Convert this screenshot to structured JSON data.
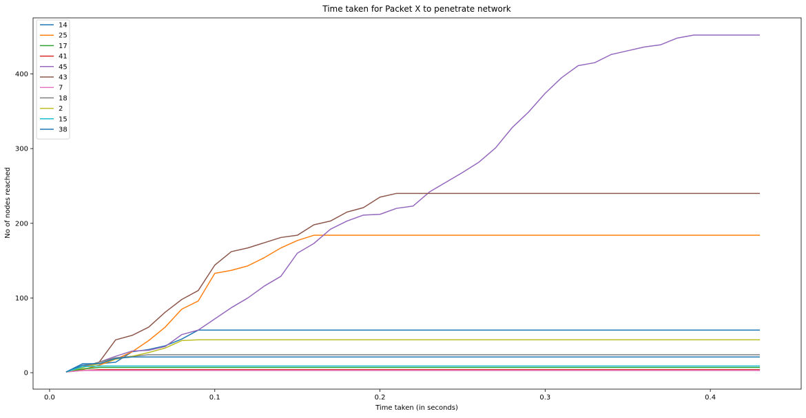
{
  "chart_data": {
    "type": "line",
    "title": "Time taken for Packet X to penetrate network",
    "xlabel": "Time taken (in seconds)",
    "ylabel": "No of nodes reached",
    "xlim": [
      -0.01,
      0.455
    ],
    "ylim": [
      -22,
      475
    ],
    "xticks": [
      0.0,
      0.1,
      0.2,
      0.3,
      0.4
    ],
    "xtick_labels": [
      "0.0",
      "0.1",
      "0.2",
      "0.3",
      "0.4"
    ],
    "yticks": [
      0,
      100,
      200,
      300,
      400
    ],
    "ytick_labels": [
      "0",
      "100",
      "200",
      "300",
      "400"
    ],
    "grid": false,
    "legend_position": "top-left",
    "x": [
      0.01,
      0.02,
      0.03,
      0.04,
      0.05,
      0.06,
      0.07,
      0.08,
      0.09,
      0.1,
      0.11,
      0.12,
      0.13,
      0.14,
      0.15,
      0.16,
      0.17,
      0.18,
      0.19,
      0.2,
      0.21,
      0.22,
      0.23,
      0.24,
      0.25,
      0.26,
      0.27,
      0.28,
      0.29,
      0.3,
      0.31,
      0.32,
      0.33,
      0.34,
      0.35,
      0.36,
      0.37,
      0.38,
      0.39,
      0.4,
      0.41,
      0.42,
      0.43
    ],
    "series": [
      {
        "name": "14",
        "color": "#1f77b4",
        "values": [
          1,
          10,
          12,
          14,
          28,
          31,
          36,
          45,
          57,
          57,
          57,
          57,
          57,
          57,
          57,
          57,
          57,
          57,
          57,
          57,
          57,
          57,
          57,
          57,
          57,
          57,
          57,
          57,
          57,
          57,
          57,
          57,
          57,
          57,
          57,
          57,
          57,
          57,
          57,
          57,
          57,
          57,
          57
        ]
      },
      {
        "name": "25",
        "color": "#ff7f0e",
        "values": [
          1,
          4,
          10,
          18,
          28,
          43,
          61,
          85,
          96,
          133,
          137,
          143,
          154,
          167,
          177,
          184,
          184,
          184,
          184,
          184,
          184,
          184,
          184,
          184,
          184,
          184,
          184,
          184,
          184,
          184,
          184,
          184,
          184,
          184,
          184,
          184,
          184,
          184,
          184,
          184,
          184,
          184,
          184
        ]
      },
      {
        "name": "17",
        "color": "#2ca02c",
        "values": [
          1,
          5,
          7,
          7,
          7,
          7,
          7,
          7,
          7,
          7,
          7,
          7,
          7,
          7,
          7,
          7,
          7,
          7,
          7,
          7,
          7,
          7,
          7,
          7,
          7,
          7,
          7,
          7,
          7,
          7,
          7,
          7,
          7,
          7,
          7,
          7,
          7,
          7,
          7,
          7,
          7,
          7,
          7
        ]
      },
      {
        "name": "41",
        "color": "#d62728",
        "values": [
          1,
          3,
          4,
          4,
          4,
          4,
          4,
          4,
          4,
          4,
          4,
          4,
          4,
          4,
          4,
          4,
          4,
          4,
          4,
          4,
          4,
          4,
          4,
          4,
          4,
          4,
          4,
          4,
          4,
          4,
          4,
          4,
          4,
          4,
          4,
          4,
          4,
          4,
          4,
          4,
          4,
          4,
          4
        ]
      },
      {
        "name": "45",
        "color": "#9467bd",
        "values": [
          1,
          8,
          14,
          22,
          29,
          30,
          35,
          51,
          57,
          72,
          87,
          100,
          116,
          129,
          160,
          173,
          192,
          203,
          211,
          212,
          220,
          223,
          242,
          255,
          268,
          282,
          301,
          328,
          349,
          374,
          395,
          411,
          415,
          426,
          431,
          436,
          439,
          448,
          452,
          452,
          452,
          452,
          452
        ]
      },
      {
        "name": "43",
        "color": "#8c564b",
        "values": [
          1,
          8,
          14,
          44,
          50,
          61,
          81,
          98,
          110,
          144,
          162,
          167,
          174,
          181,
          184,
          198,
          203,
          215,
          221,
          235,
          240,
          240,
          240,
          240,
          240,
          240,
          240,
          240,
          240,
          240,
          240,
          240,
          240,
          240,
          240,
          240,
          240,
          240,
          240,
          240,
          240,
          240,
          240
        ]
      },
      {
        "name": "7",
        "color": "#e377c2",
        "values": [
          1,
          3,
          3,
          3,
          3,
          3,
          3,
          3,
          3,
          3,
          3,
          3,
          3,
          3,
          3,
          3,
          3,
          3,
          3,
          3,
          3,
          3,
          3,
          3,
          3,
          3,
          3,
          3,
          3,
          3,
          3,
          3,
          3,
          3,
          3,
          3,
          3,
          3,
          3,
          3,
          3,
          3,
          3
        ]
      },
      {
        "name": "18",
        "color": "#7f7f7f",
        "values": [
          1,
          8,
          14,
          20,
          22,
          24,
          24,
          24,
          24,
          24,
          24,
          24,
          24,
          24,
          24,
          24,
          24,
          24,
          24,
          24,
          24,
          24,
          24,
          24,
          24,
          24,
          24,
          24,
          24,
          24,
          24,
          24,
          24,
          24,
          24,
          24,
          24,
          24,
          24,
          24,
          24,
          24,
          24
        ]
      },
      {
        "name": "2",
        "color": "#bcbd22",
        "values": [
          1,
          7,
          12,
          18,
          22,
          27,
          33,
          43,
          44,
          44,
          44,
          44,
          44,
          44,
          44,
          44,
          44,
          44,
          44,
          44,
          44,
          44,
          44,
          44,
          44,
          44,
          44,
          44,
          44,
          44,
          44,
          44,
          44,
          44,
          44,
          44,
          44,
          44,
          44,
          44,
          44,
          44,
          44
        ]
      },
      {
        "name": "15",
        "color": "#17becf",
        "values": [
          1,
          8,
          9,
          9,
          9,
          9,
          9,
          9,
          9,
          9,
          9,
          9,
          9,
          9,
          9,
          9,
          9,
          9,
          9,
          9,
          9,
          9,
          9,
          9,
          9,
          9,
          9,
          9,
          9,
          9,
          9,
          9,
          9,
          9,
          9,
          9,
          9,
          9,
          9,
          9,
          9,
          9,
          9
        ]
      },
      {
        "name": "38",
        "color": "#1f77b4",
        "values": [
          1,
          12,
          12,
          19,
          21,
          21,
          21,
          21,
          21,
          21,
          21,
          21,
          21,
          21,
          21,
          21,
          21,
          21,
          21,
          21,
          21,
          21,
          21,
          21,
          21,
          21,
          21,
          21,
          21,
          21,
          21,
          21,
          21,
          21,
          21,
          21,
          21,
          21,
          21,
          21,
          21,
          21,
          21
        ]
      }
    ]
  }
}
